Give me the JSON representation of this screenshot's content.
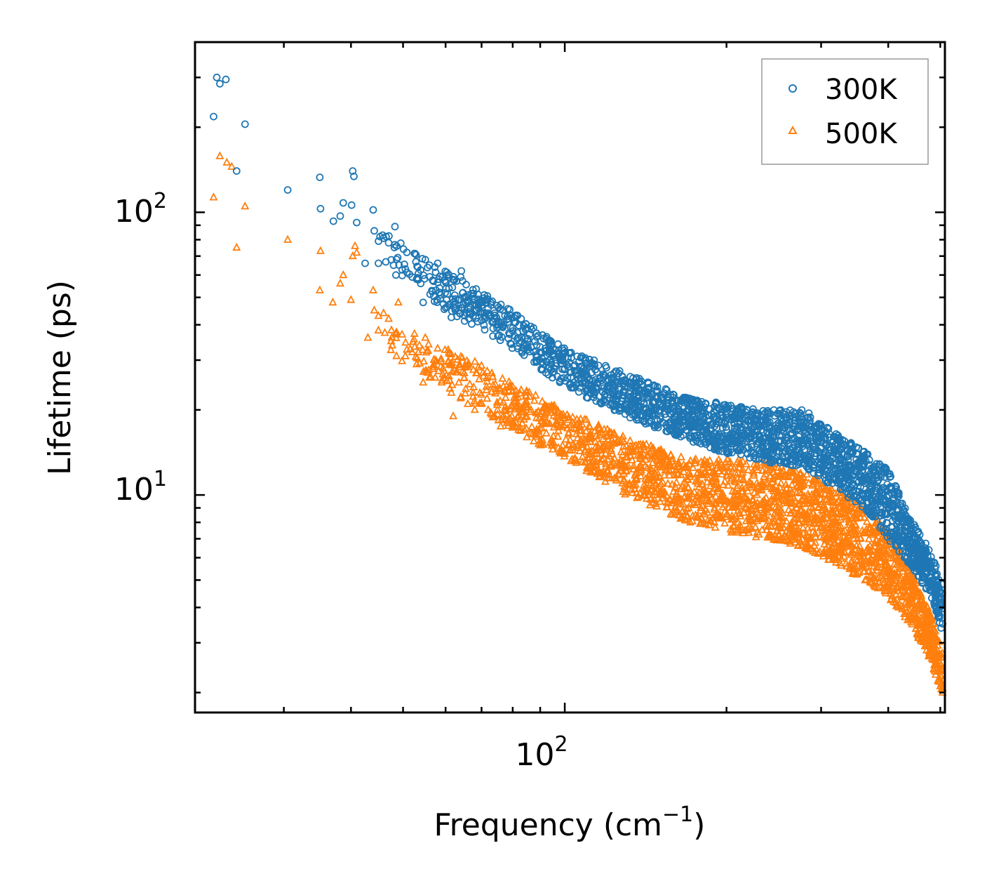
{
  "chart_data": {
    "type": "scatter",
    "xscale": "log",
    "yscale": "log",
    "xlim": [
      20.5,
      510
    ],
    "ylim": [
      1.7,
      400
    ],
    "xlabel": {
      "text": "Frequency (cm",
      "sup": "−1",
      "suffix": ")"
    },
    "ylabel": "Lifetime (ps)",
    "x_ticks": [
      {
        "base": "10",
        "exp": "2",
        "value": 100
      }
    ],
    "y_ticks": [
      {
        "base": "10",
        "exp": "1",
        "value": 10
      },
      {
        "base": "10",
        "exp": "2",
        "value": 100
      }
    ],
    "legend": {
      "position": "top-right",
      "entries": [
        "300K",
        "500K"
      ]
    },
    "colors": {
      "300K": "#1f77b4",
      "500K": "#ff7f0e"
    },
    "series": [
      {
        "name": "300K",
        "marker": "circle",
        "points": [
          [
            22.2,
            218
          ],
          [
            22.5,
            300
          ],
          [
            22.8,
            285
          ],
          [
            23.4,
            295
          ],
          [
            24.5,
            140
          ],
          [
            25.4,
            205
          ],
          [
            30.5,
            120
          ],
          [
            35,
            133
          ],
          [
            35.1,
            103
          ],
          [
            37.1,
            93
          ],
          [
            38.2,
            97
          ],
          [
            38.7,
            108
          ],
          [
            40.1,
            106
          ],
          [
            40.3,
            140
          ],
          [
            40.5,
            134
          ],
          [
            41,
            92
          ],
          [
            42.5,
            66
          ],
          [
            44,
            102
          ],
          [
            44.2,
            86
          ],
          [
            45,
            66
          ],
          [
            45.3,
            82
          ],
          [
            45.8,
            83
          ],
          [
            46,
            81
          ],
          [
            46.5,
            82
          ],
          [
            47,
            78
          ],
          [
            48,
            65
          ],
          [
            48.5,
            60
          ],
          [
            48.3,
            89
          ],
          [
            50.5,
            63
          ],
          [
            52,
            59
          ],
          [
            53,
            58
          ],
          [
            54.5,
            48
          ],
          [
            55,
            68
          ],
          [
            56,
            65
          ],
          [
            57,
            57
          ],
          [
            57.3,
            64
          ],
          [
            58,
            66
          ],
          [
            58.2,
            58
          ],
          [
            61.5,
            42.5
          ],
          [
            62,
            48
          ],
          [
            63.5,
            45
          ],
          [
            64,
            59
          ],
          [
            64.2,
            62
          ],
          [
            65,
            50
          ],
          [
            66,
            49
          ],
          [
            67.5,
            43
          ],
          [
            68,
            47
          ],
          [
            69,
            46
          ],
          [
            70,
            48
          ],
          [
            71,
            42
          ],
          [
            72,
            44
          ],
          [
            73,
            47
          ],
          [
            74,
            42
          ],
          [
            75,
            40
          ],
          [
            77,
            40
          ],
          [
            79,
            37
          ],
          [
            80,
            39
          ],
          [
            82,
            36
          ],
          [
            84,
            34
          ],
          [
            86,
            37
          ],
          [
            88,
            35
          ],
          [
            90,
            32
          ],
          [
            92,
            33
          ],
          [
            95,
            31
          ],
          [
            98,
            30
          ],
          [
            100,
            28
          ],
          [
            105,
            27
          ],
          [
            110,
            26
          ],
          [
            115,
            25
          ],
          [
            120,
            24
          ],
          [
            128,
            22
          ],
          [
            135,
            21
          ],
          [
            140,
            19
          ],
          [
            150,
            20
          ],
          [
            160,
            19
          ],
          [
            170,
            18.5
          ],
          [
            180,
            18
          ],
          [
            190,
            17.5
          ],
          [
            200,
            17
          ],
          [
            205,
            16.5
          ],
          [
            210,
            18
          ],
          [
            220,
            16.5
          ],
          [
            230,
            16
          ],
          [
            240,
            15.5
          ],
          [
            250,
            17
          ],
          [
            260,
            16
          ],
          [
            270,
            15.5
          ],
          [
            280,
            16.5
          ],
          [
            290,
            14.5
          ],
          [
            300,
            13.5
          ],
          [
            320,
            13
          ],
          [
            340,
            12.5
          ],
          [
            355,
            11.5
          ],
          [
            370,
            10.8
          ],
          [
            385,
            10
          ],
          [
            395,
            9.5
          ],
          [
            400,
            9
          ],
          [
            410,
            8.4
          ],
          [
            425,
            7.5
          ],
          [
            440,
            6.5
          ],
          [
            455,
            5.8
          ],
          [
            470,
            5.3
          ],
          [
            480,
            4.8
          ],
          [
            490,
            4.4
          ],
          [
            500,
            4.1
          ],
          [
            505,
            3.5
          ]
        ],
        "trend_upper": [
          [
            44,
            90
          ],
          [
            60,
            62
          ],
          [
            80,
            45
          ],
          [
            100,
            33
          ],
          [
            130,
            27
          ],
          [
            170,
            22
          ],
          [
            200,
            21
          ],
          [
            240,
            20
          ],
          [
            280,
            20
          ],
          [
            320,
            16.5
          ],
          [
            360,
            14.5
          ],
          [
            400,
            12.3
          ],
          [
            440,
            8.3
          ],
          [
            480,
            6.3
          ],
          [
            505,
            4.8
          ]
        ],
        "trend_lower": [
          [
            44,
            70
          ],
          [
            60,
            45
          ],
          [
            80,
            33
          ],
          [
            100,
            24
          ],
          [
            130,
            19
          ],
          [
            170,
            15.5
          ],
          [
            200,
            14
          ],
          [
            240,
            13
          ],
          [
            280,
            12.5
          ],
          [
            320,
            10.5
          ],
          [
            360,
            9.0
          ],
          [
            400,
            7.0
          ],
          [
            440,
            5.6
          ],
          [
            480,
            4.4
          ],
          [
            505,
            3.2
          ]
        ]
      },
      {
        "name": "500K",
        "marker": "triangle",
        "points": [
          [
            22.2,
            113
          ],
          [
            22.8,
            158
          ],
          [
            23.5,
            150
          ],
          [
            24,
            145
          ],
          [
            24.5,
            75
          ],
          [
            25.4,
            105
          ],
          [
            30.5,
            80
          ],
          [
            35,
            53
          ],
          [
            35.1,
            73
          ],
          [
            37,
            48
          ],
          [
            38.2,
            56
          ],
          [
            38.7,
            60
          ],
          [
            40,
            49
          ],
          [
            40.3,
            70
          ],
          [
            40.7,
            76
          ],
          [
            41,
            72
          ],
          [
            43,
            36
          ],
          [
            44,
            53
          ],
          [
            44.2,
            45
          ],
          [
            45,
            43
          ],
          [
            46,
            44
          ],
          [
            47,
            42
          ],
          [
            47.5,
            35
          ],
          [
            48.5,
            37
          ],
          [
            49,
            48
          ],
          [
            50.5,
            31
          ],
          [
            52,
            32
          ],
          [
            53,
            29
          ],
          [
            54.5,
            25
          ],
          [
            55,
            36
          ],
          [
            56,
            26
          ],
          [
            57,
            29
          ],
          [
            58,
            33
          ],
          [
            59,
            25
          ],
          [
            61.5,
            23
          ],
          [
            62,
            19
          ],
          [
            63.5,
            25
          ],
          [
            64,
            22
          ],
          [
            65,
            26
          ],
          [
            66,
            21
          ],
          [
            68,
            20
          ],
          [
            70,
            21
          ],
          [
            72,
            20
          ],
          [
            74,
            19
          ],
          [
            76,
            17.5
          ],
          [
            78,
            18
          ],
          [
            80,
            17.5
          ],
          [
            82,
            17
          ],
          [
            85,
            16
          ],
          [
            88,
            16.5
          ],
          [
            90,
            15
          ],
          [
            95,
            14.5
          ],
          [
            100,
            14
          ],
          [
            105,
            13
          ],
          [
            110,
            12.5
          ],
          [
            115,
            12
          ],
          [
            120,
            11.5
          ],
          [
            128,
            11
          ],
          [
            135,
            10.5
          ],
          [
            140,
            10
          ],
          [
            150,
            10
          ],
          [
            160,
            9.5
          ],
          [
            170,
            9
          ],
          [
            180,
            9.5
          ],
          [
            190,
            9
          ],
          [
            200,
            9.5
          ],
          [
            210,
            10
          ],
          [
            220,
            9.5
          ],
          [
            230,
            9.2
          ],
          [
            240,
            9
          ],
          [
            250,
            9.4
          ],
          [
            260,
            9.5
          ],
          [
            270,
            9
          ],
          [
            280,
            9.5
          ],
          [
            290,
            8.6
          ],
          [
            300,
            8.4
          ],
          [
            320,
            8
          ],
          [
            340,
            7.6
          ],
          [
            355,
            7
          ],
          [
            370,
            6.6
          ],
          [
            385,
            6
          ],
          [
            400,
            5.6
          ],
          [
            410,
            5.1
          ],
          [
            425,
            4.6
          ],
          [
            440,
            4.1
          ],
          [
            455,
            3.6
          ],
          [
            470,
            3.2
          ],
          [
            480,
            2.9
          ],
          [
            490,
            2.6
          ],
          [
            500,
            2.3
          ],
          [
            505,
            2.0
          ]
        ],
        "trend_upper": [
          [
            44,
            46
          ],
          [
            60,
            34
          ],
          [
            80,
            25
          ],
          [
            100,
            20
          ],
          [
            130,
            16
          ],
          [
            170,
            13.5
          ],
          [
            200,
            13.5
          ],
          [
            240,
            13
          ],
          [
            280,
            12
          ],
          [
            320,
            10.5
          ],
          [
            360,
            9.2
          ],
          [
            400,
            7.5
          ],
          [
            440,
            5.5
          ],
          [
            480,
            3.8
          ],
          [
            505,
            2.8
          ]
        ],
        "trend_lower": [
          [
            44,
            34
          ],
          [
            60,
            24
          ],
          [
            80,
            17
          ],
          [
            100,
            13.5
          ],
          [
            130,
            10
          ],
          [
            170,
            8
          ],
          [
            200,
            7.3
          ],
          [
            240,
            7.0
          ],
          [
            280,
            6.5
          ],
          [
            320,
            5.7
          ],
          [
            360,
            5.0
          ],
          [
            400,
            4.3
          ],
          [
            440,
            3.5
          ],
          [
            480,
            2.6
          ],
          [
            505,
            1.95
          ]
        ]
      }
    ]
  }
}
